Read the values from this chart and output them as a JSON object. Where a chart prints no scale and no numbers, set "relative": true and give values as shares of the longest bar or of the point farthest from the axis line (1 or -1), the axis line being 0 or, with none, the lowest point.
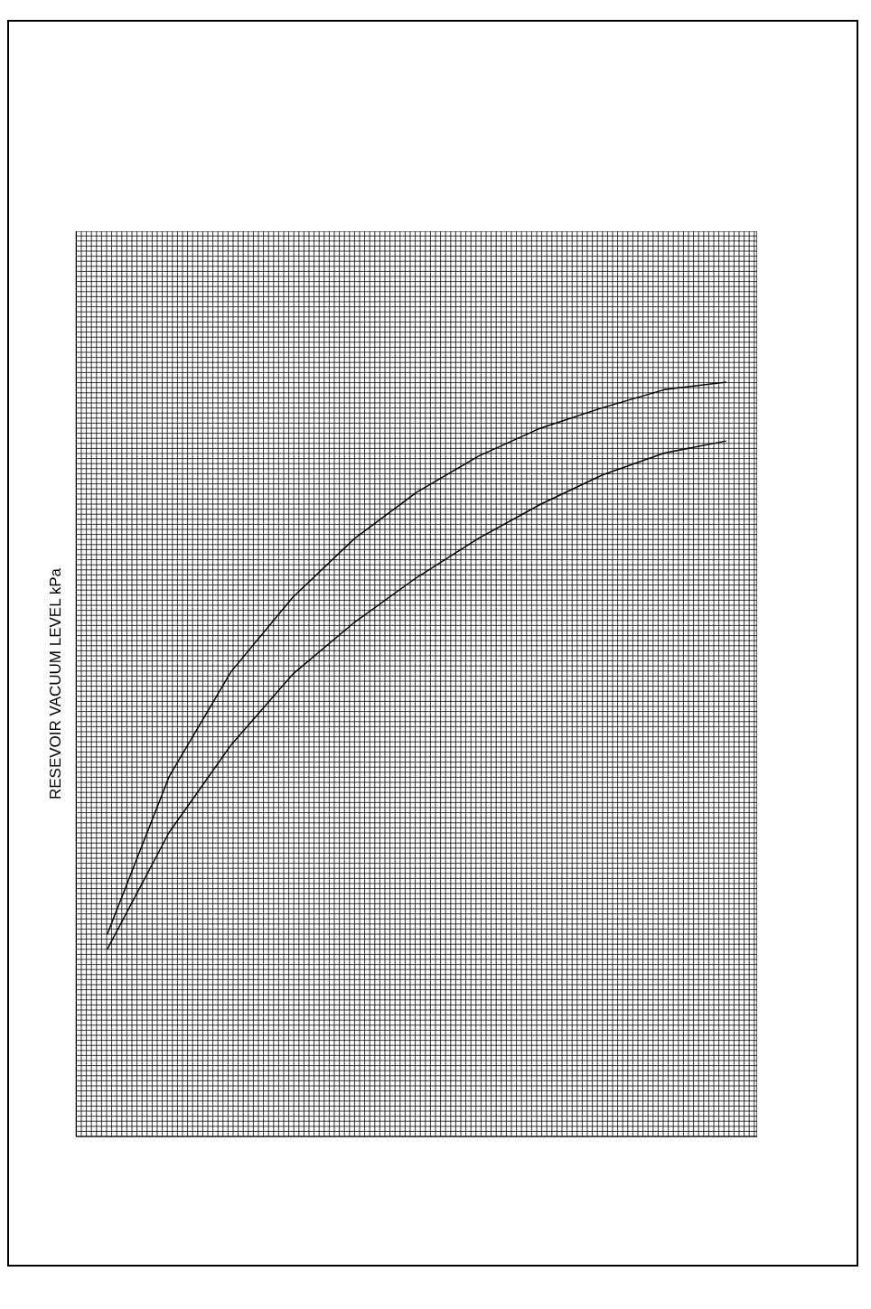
{
  "chart_data": {
    "type": "line",
    "ylabel": "RESEVOIR VACUUM LEVEL kPa",
    "relative": true,
    "grid": true,
    "legend": false,
    "marker": "none",
    "line_style": "solid",
    "categories": [
      null,
      null,
      null,
      null,
      null,
      null,
      null,
      null,
      null,
      null,
      null
    ],
    "series": [
      {
        "color": "#000000",
        "values": [
          0.268,
          0.477,
          0.616,
          0.715,
          0.793,
          0.854,
          0.902,
          0.939,
          0.966,
          0.99,
          1
        ]
      },
      {
        "color": "#000000",
        "values": [
          0.248,
          0.403,
          0.519,
          0.613,
          0.682,
          0.741,
          0.793,
          0.838,
          0.877,
          0.906,
          0.922
        ]
      }
    ]
  }
}
